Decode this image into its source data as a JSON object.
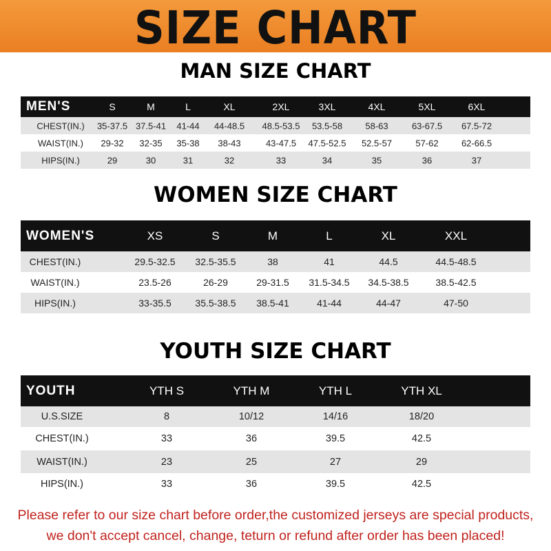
{
  "banner_title": "SIZE CHART",
  "colors": {
    "banner": "#ef8a2c",
    "header_row": "#111111",
    "alt_row": "#e4e4e4",
    "notice": "#c0221d"
  },
  "men": {
    "title": "MAN SIZE CHART",
    "header": [
      "MEN'S",
      "S",
      "M",
      "L",
      "XL",
      "2XL",
      "3XL",
      "4XL",
      "5XL",
      "6XL"
    ],
    "rows": [
      [
        "CHEST(IN.)",
        "35-37.5",
        "37.5-41",
        "41-44",
        "44-48.5",
        "48.5-53.5",
        "53.5-58",
        "58-63",
        "63-67.5",
        "67.5-72"
      ],
      [
        "WAIST(IN.)",
        "29-32",
        "32-35",
        "35-38",
        "38-43",
        "43-47.5",
        "47.5-52.5",
        "52.5-57",
        "57-62",
        "62-66.5"
      ],
      [
        "HIPS(IN.)",
        "29",
        "30",
        "31",
        "32",
        "33",
        "34",
        "35",
        "36",
        "37"
      ]
    ]
  },
  "women": {
    "title": "WOMEN SIZE CHART",
    "header": [
      "WOMEN'S",
      "XS",
      "S",
      "M",
      "L",
      "XL",
      "XXL"
    ],
    "rows": [
      [
        "CHEST(IN.)",
        "29.5-32.5",
        "32.5-35.5",
        "38",
        "41",
        "44.5",
        "44.5-48.5"
      ],
      [
        "WAIST(IN.)",
        "23.5-26",
        "26-29",
        "29-31.5",
        "31.5-34.5",
        "34.5-38.5",
        "38.5-42.5"
      ],
      [
        "HIPS(IN.)",
        "33-35.5",
        "35.5-38.5",
        "38.5-41",
        "41-44",
        "44-47",
        "47-50"
      ]
    ]
  },
  "youth": {
    "title": "YOUTH SIZE CHART",
    "header": [
      "YOUTH",
      "YTH S",
      "YTH M",
      "YTH L",
      "YTH XL"
    ],
    "rows": [
      [
        "U.S.SIZE",
        "8",
        "10/12",
        "14/16",
        "18/20"
      ],
      [
        "CHEST(IN.)",
        "33",
        "36",
        "39.5",
        "42.5"
      ],
      [
        "WAIST(IN.)",
        "23",
        "25",
        "27",
        "29"
      ],
      [
        "HIPS(IN.)",
        "33",
        "36",
        "39.5",
        "42.5"
      ]
    ]
  },
  "notice": {
    "line1": "Please refer to our size chart before order,the customized jerseys are special products,",
    "line2": "we don't accept cancel, change, teturn or refund after order has been placed!"
  }
}
